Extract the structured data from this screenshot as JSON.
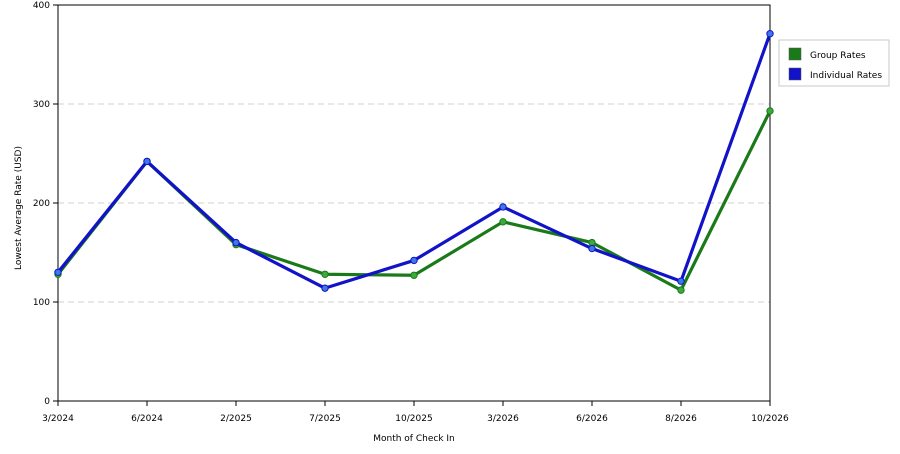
{
  "chart_data": {
    "type": "line",
    "title": "",
    "xlabel": "Month of Check In",
    "ylabel": "Lowest Average Rate (USD)",
    "ylim": [
      0,
      400
    ],
    "yticks": [
      0,
      100,
      200,
      300,
      400
    ],
    "grid": "horizontal dashed at 100, 200, 300",
    "legend_position": "right",
    "categories": [
      "3/2024",
      "6/2024",
      "2/2025",
      "7/2025",
      "10/2025",
      "3/2026",
      "6/2026",
      "8/2026",
      "10/2026"
    ],
    "series": [
      {
        "name": "Group Rates",
        "color": "#1a7a1a",
        "marker_color": "#3caa3c",
        "values": [
          128,
          242,
          158,
          128,
          127,
          181,
          160,
          112,
          293
        ]
      },
      {
        "name": "Individual Rates",
        "color": "#1212c8",
        "marker_color": "#3c78e6",
        "values": [
          130,
          242,
          160,
          114,
          142,
          196,
          154,
          121,
          371
        ]
      }
    ]
  }
}
